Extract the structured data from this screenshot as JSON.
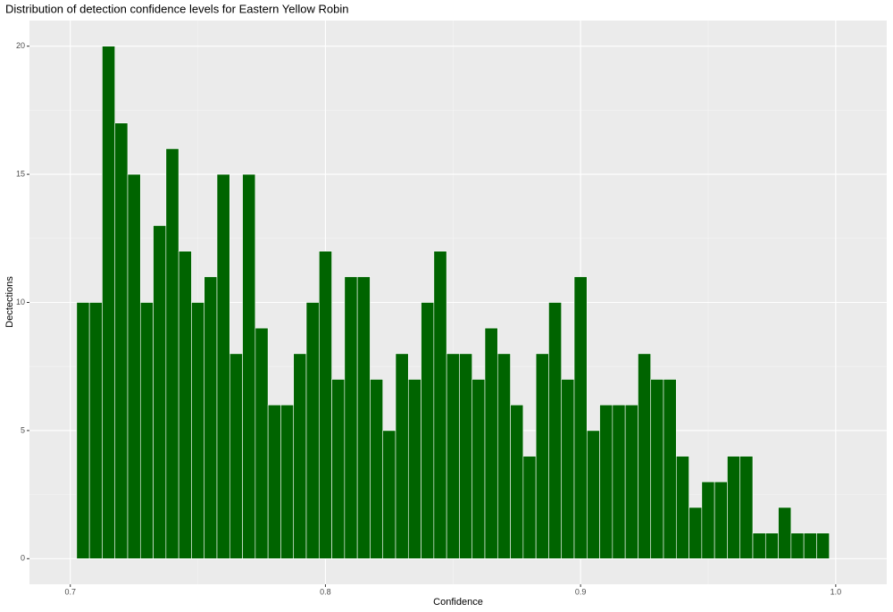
{
  "chart_data": {
    "type": "histogram",
    "title": "Distribution of detection confidence levels for Eastern Yellow Robin",
    "x_label": "Confidence",
    "y_label": "Dectections",
    "bins": [
      0.7025,
      0.7075,
      0.7125,
      0.7175,
      0.7225,
      0.7275,
      0.7325,
      0.7375,
      0.7425,
      0.7475,
      0.7525,
      0.7575,
      0.7625,
      0.7675,
      0.7725,
      0.7775,
      0.7825,
      0.7875,
      0.7925,
      0.7975,
      0.8025,
      0.8075,
      0.8125,
      0.8175,
      0.8225,
      0.8275,
      0.8325,
      0.8375,
      0.8425,
      0.8475,
      0.8525,
      0.8575,
      0.8625,
      0.8675,
      0.8725,
      0.8775,
      0.8825,
      0.8875,
      0.8925,
      0.8975,
      0.9025,
      0.9075,
      0.9125,
      0.9175,
      0.9225,
      0.9275,
      0.9325,
      0.9375,
      0.9425,
      0.9475,
      0.9525,
      0.9575,
      0.9625,
      0.9675,
      0.9725,
      0.9775,
      0.9825,
      0.9875,
      0.9925,
      0.9975
    ],
    "values": [
      10,
      10,
      20,
      17,
      15,
      10,
      13,
      16,
      12,
      10,
      11,
      15,
      8,
      15,
      9,
      6,
      6,
      8,
      10,
      12,
      7,
      11,
      11,
      7,
      5,
      8,
      7,
      10,
      12,
      8,
      8,
      7,
      9,
      8,
      6,
      4,
      8,
      10,
      7,
      11,
      5,
      6,
      6,
      6,
      8,
      7,
      7,
      4,
      2,
      3,
      3,
      4,
      4,
      1,
      1,
      2,
      1,
      1,
      1
    ],
    "color": "#006400",
    "xlim": [
      0.684,
      1.02
    ],
    "ylim": [
      -1,
      21
    ],
    "xticks": [
      0.7,
      0.8,
      0.9,
      {
        "value": 1,
        "label": "1.0"
      }
    ],
    "yticks": [
      0,
      5,
      10,
      15,
      20
    ],
    "grid": true
  }
}
